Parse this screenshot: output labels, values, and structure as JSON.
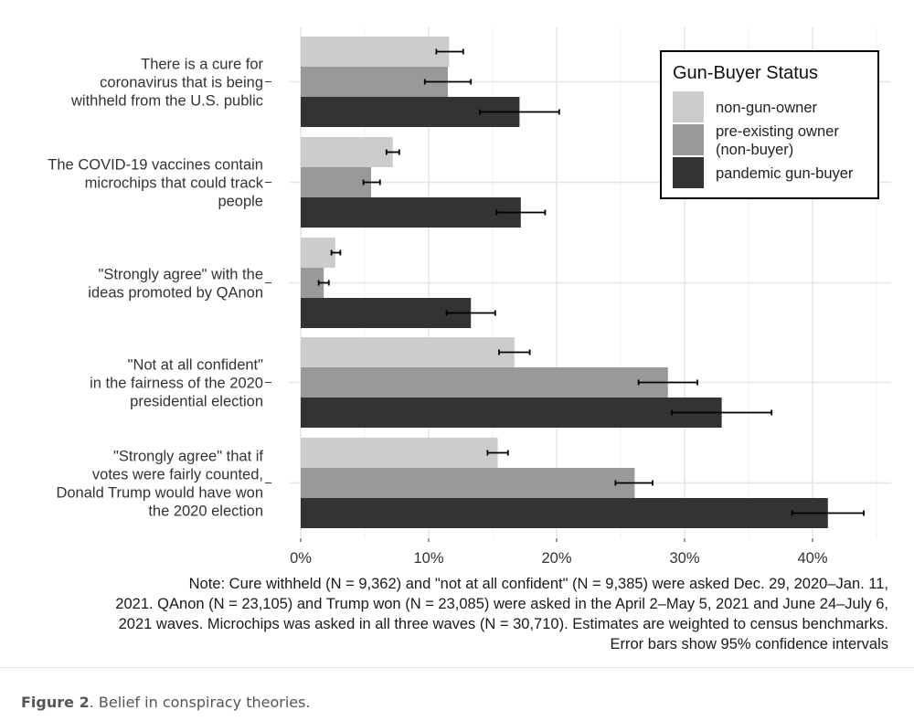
{
  "chart_data": {
    "type": "bar",
    "orientation": "horizontal",
    "categories": [
      [
        "There is a cure for",
        "coronavirus that is being",
        "withheld from the U.S. public"
      ],
      [
        "The COVID-19 vaccines contain",
        "microchips that could track",
        "people"
      ],
      [
        "\"Strongly agree\" with the",
        "ideas promoted by QAnon"
      ],
      [
        "\"Not at all confident\"",
        "in the fairness of the 2020",
        "presidential election"
      ],
      [
        "\"Strongly agree\" that if",
        "votes were fairly counted,",
        "Donald Trump would have won",
        "the 2020 election"
      ]
    ],
    "series": [
      {
        "name": "non-gun-owner",
        "color": "#cccccc",
        "values": [
          11.6,
          7.2,
          2.7,
          16.7,
          15.4
        ],
        "ci_low": [
          10.6,
          6.7,
          2.4,
          15.5,
          14.6
        ],
        "ci_high": [
          12.7,
          7.7,
          3.1,
          17.9,
          16.2
        ]
      },
      {
        "name": "pre-existing owner (non-buyer)",
        "color": "#999999",
        "values": [
          11.5,
          5.5,
          1.8,
          28.7,
          26.1
        ],
        "ci_low": [
          9.7,
          4.9,
          1.4,
          26.4,
          24.6
        ],
        "ci_high": [
          13.3,
          6.2,
          2.2,
          31.0,
          27.5
        ]
      },
      {
        "name": "pandemic gun-buyer",
        "color": "#333333",
        "values": [
          17.1,
          17.2,
          13.3,
          32.9,
          41.2
        ],
        "ci_low": [
          14.0,
          15.3,
          11.4,
          29.0,
          38.4
        ],
        "ci_high": [
          20.2,
          19.1,
          15.2,
          36.8,
          44.0
        ]
      }
    ],
    "xlim": [
      0,
      45
    ],
    "xticks": [
      0,
      10,
      20,
      30,
      40
    ],
    "xtick_labels": [
      "0%",
      "10%",
      "20%",
      "30%",
      "40%"
    ],
    "legend_title": "Gun-Buyer Status",
    "legend_labels": [
      [
        "non-gun-owner"
      ],
      [
        "pre-existing owner",
        "(non-buyer)"
      ],
      [
        "pandemic gun-buyer"
      ]
    ],
    "legend_position": "top-right",
    "grid": true
  },
  "note_lines": [
    "Note: Cure withheld (N = 9,362) and \"not at all confident\" (N = 9,385) were asked Dec. 29, 2020–Jan. 11,",
    "2021. QAnon (N = 23,105) and Trump won (N = 23,085) were asked in the April 2–May 5, 2021 and June 24–July 6,",
    "2021 waves. Microchips was asked in all three waves (N = 30,710). Estimates are weighted to census benchmarks.",
    "Error bars show 95% confidence intervals"
  ],
  "caption": {
    "label": "Figure 2",
    "text": ". Belief in conspiracy theories."
  }
}
